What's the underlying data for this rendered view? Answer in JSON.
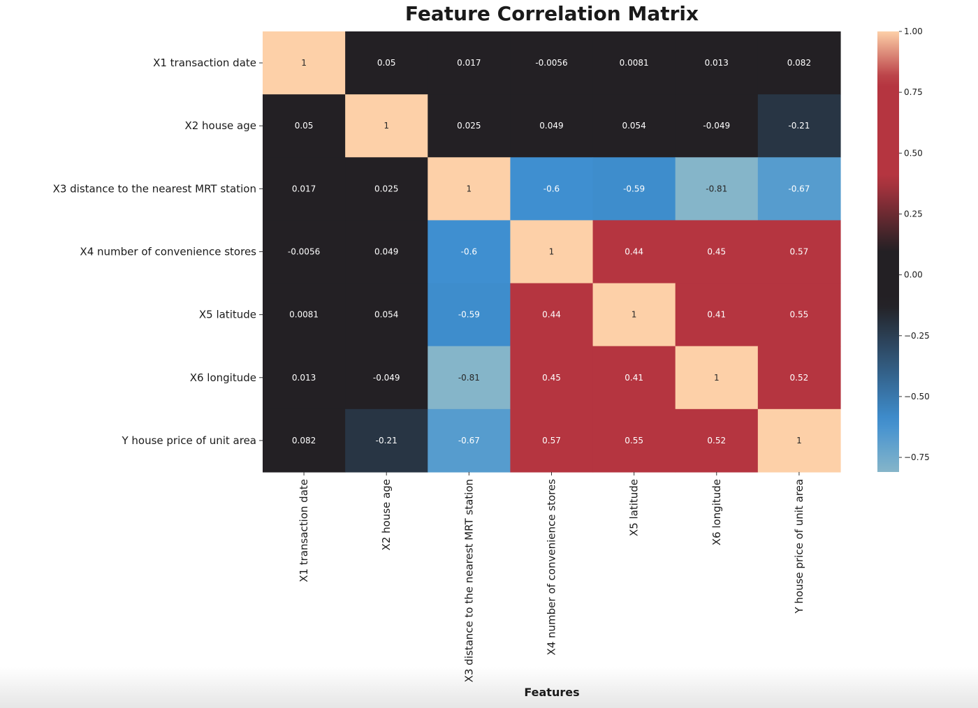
{
  "chart_data": {
    "type": "heatmap",
    "title": "Feature Correlation Matrix",
    "xlabel": "Features",
    "ylabel": "",
    "labels": [
      "X1 transaction date",
      "X2 house age",
      "X3 distance to the nearest MRT station",
      "X4 number of convenience stores",
      "X5 latitude",
      "X6 longitude",
      "Y house price of unit area"
    ],
    "cells": [
      [
        "1",
        "0.05",
        "0.017",
        "-0.0056",
        "0.0081",
        "0.013",
        "0.082"
      ],
      [
        "0.05",
        "1",
        "0.025",
        "0.049",
        "0.054",
        "-0.049",
        "-0.21"
      ],
      [
        "0.017",
        "0.025",
        "1",
        "-0.6",
        "-0.59",
        "-0.81",
        "-0.67"
      ],
      [
        "-0.0056",
        "0.049",
        "-0.6",
        "1",
        "0.44",
        "0.45",
        "0.57"
      ],
      [
        "0.0081",
        "0.054",
        "-0.59",
        "0.44",
        "1",
        "0.41",
        "0.55"
      ],
      [
        "0.013",
        "-0.049",
        "-0.81",
        "0.45",
        "0.41",
        "1",
        "0.52"
      ],
      [
        "0.082",
        "-0.21",
        "-0.67",
        "0.57",
        "0.55",
        "0.52",
        "1"
      ]
    ],
    "colorbar": {
      "range": [
        -0.81,
        1.0
      ],
      "ticks": [
        "1.00",
        "0.75",
        "0.50",
        "0.25",
        "0.00",
        "−0.25",
        "−0.50",
        "−0.75"
      ],
      "tick_values": [
        1.0,
        0.75,
        0.5,
        0.25,
        0.0,
        -0.25,
        -0.5,
        -0.75
      ]
    },
    "colors": {
      "max": "#fdd0a8",
      "high": "#b53540",
      "mid": "#232024",
      "low": "#3f8fd0",
      "min": "#85b5c9"
    }
  }
}
